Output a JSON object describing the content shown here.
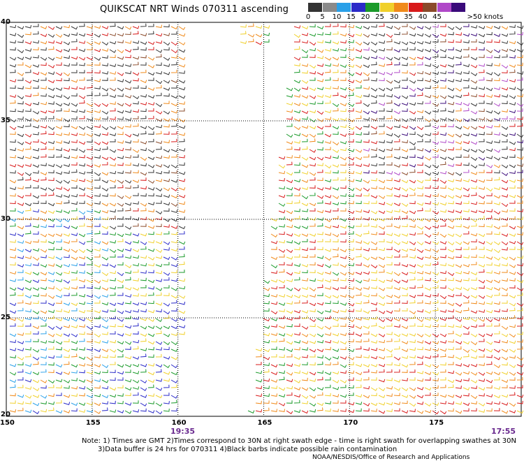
{
  "title": "QUIKSCAT NRT Winds 070311 ascending",
  "legend": {
    "unit_label": ">50 knots",
    "items": [
      {
        "label": "0",
        "color": "#333333"
      },
      {
        "label": "5",
        "color": "#8a8a8a"
      },
      {
        "label": "10",
        "color": "#2aa0e8"
      },
      {
        "label": "15",
        "color": "#2a2ac8"
      },
      {
        "label": "20",
        "color": "#1a9a2a"
      },
      {
        "label": "25",
        "color": "#f0d02a"
      },
      {
        "label": "30",
        "color": "#f08a1a"
      },
      {
        "label": "35",
        "color": "#d81a1a"
      },
      {
        "label": "40",
        "color": "#8a4a2a"
      },
      {
        "label": "45",
        "color": "#b048c8"
      },
      {
        "label": "",
        "color": "#3a0a7a"
      }
    ]
  },
  "map": {
    "lon_labels": [
      "150",
      "155",
      "160",
      "165",
      "170",
      "175"
    ],
    "lat_labels": [
      "40",
      "35",
      "30",
      "25",
      "20"
    ],
    "lon_range": [
      150,
      180
    ],
    "lat_range": [
      20,
      40
    ],
    "swath_times": [
      "19:35",
      "17:55"
    ]
  },
  "notes": [
    "Note: 1) Times are GMT 2)Times correspond to 30N at right swath edge - time is right swath for overlapping swathes at 30N",
    "3)Data buffer is 24 hrs for 070311 4)Black barbs indicate possible rain contamination",
    "NOAA/NESDIS/Office of Research and Applications"
  ]
}
